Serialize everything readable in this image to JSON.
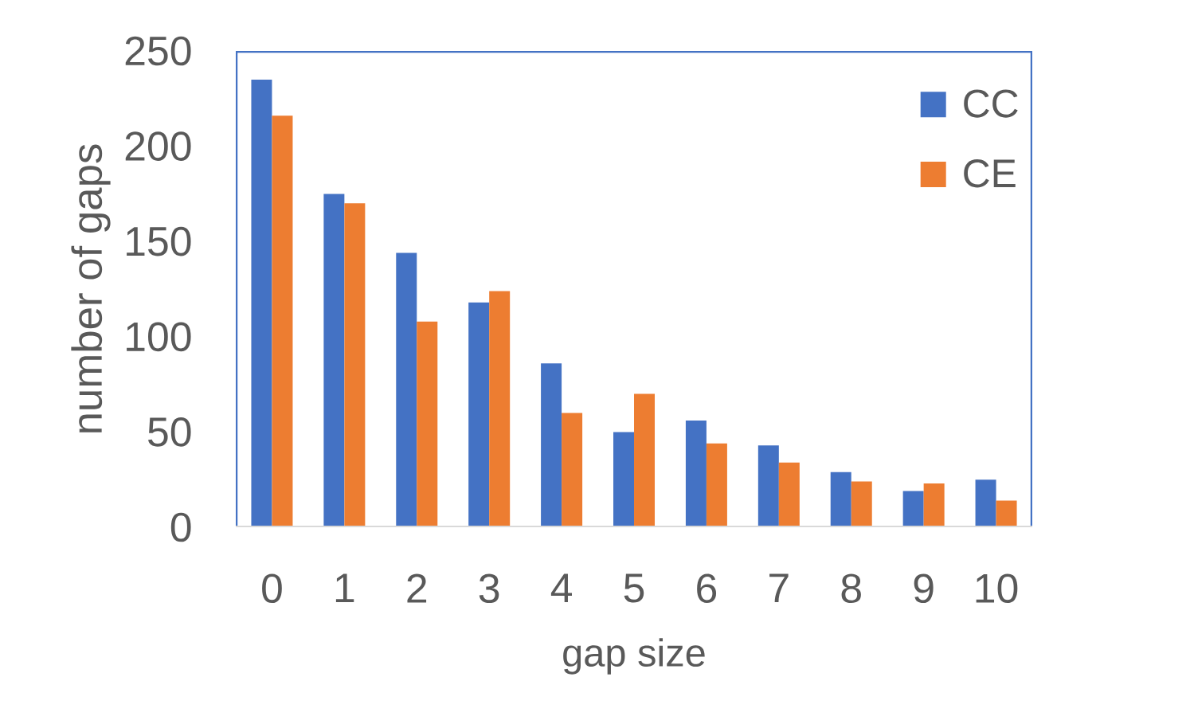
{
  "chart_data": {
    "type": "bar",
    "xlabel": "gap size",
    "ylabel": "number of gaps",
    "categories": [
      "0",
      "1",
      "2",
      "3",
      "4",
      "5",
      "6",
      "7",
      "8",
      "9",
      "10"
    ],
    "series": [
      {
        "name": "CC",
        "color": "#4472c4",
        "values": [
          235,
          175,
          144,
          118,
          86,
          50,
          56,
          43,
          29,
          19,
          25
        ]
      },
      {
        "name": "CE",
        "color": "#ed7d31",
        "values": [
          216,
          170,
          108,
          124,
          60,
          70,
          44,
          34,
          24,
          23,
          14
        ]
      }
    ],
    "ylim": [
      0,
      250
    ],
    "yticks": [
      0,
      50,
      100,
      150,
      200,
      250
    ],
    "legend": "top right"
  }
}
